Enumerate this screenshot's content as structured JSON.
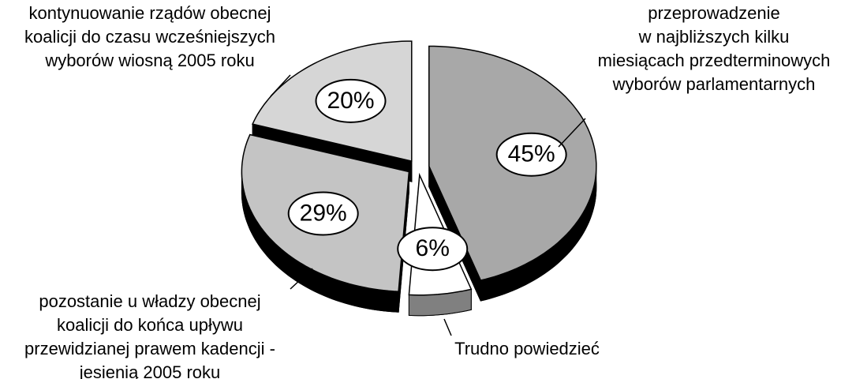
{
  "chart_data": {
    "type": "pie",
    "categories": [
      [
        "przeprowadzenie",
        "w najbliższych kilku",
        "miesiącach przedterminowych",
        "wyborów parlamentarnych"
      ],
      [
        "Trudno powiedzieć"
      ],
      [
        "pozostanie u władzy obecnej",
        "koalicji do końca upływu",
        "przewidzianej prawem kadencji -",
        "jesienią 2005 roku"
      ],
      [
        "kontynuowanie rządów obecnej",
        "koalicji do czasu wcześniejszych",
        "wyborów wiosną 2005 roku"
      ]
    ],
    "values": [
      45,
      6,
      29,
      20
    ],
    "value_labels": [
      "45%",
      "6%",
      "29%",
      "20%"
    ],
    "colors": [
      "#a8a8a8",
      "#ffffff",
      "#c4c4c4",
      "#d6d6d6"
    ],
    "side_colors": [
      "#000000",
      "#808080",
      "#000000",
      "#000000"
    ]
  }
}
